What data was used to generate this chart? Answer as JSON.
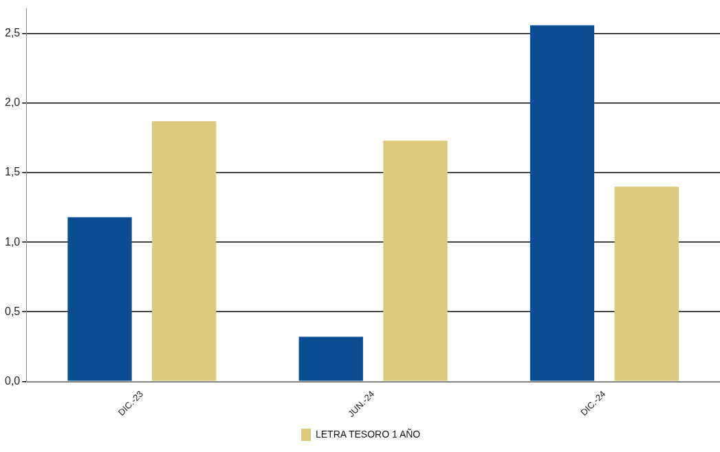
{
  "chart_data": {
    "type": "bar",
    "categories": [
      "DIC.-23",
      "JUN.-24",
      "DIC.-24"
    ],
    "series": [
      {
        "color": "#0b4d93",
        "values": [
          1.18,
          0.32,
          2.56
        ]
      },
      {
        "name": "LETRA TESORO 1 AÑO",
        "color": "#dcc97c",
        "values": [
          1.87,
          1.73,
          1.4
        ]
      }
    ],
    "ylim": [
      0,
      2.68
    ],
    "yticks": [
      {
        "value": 0,
        "label": "0,0"
      },
      {
        "value": 0.5,
        "label": "0,5"
      },
      {
        "value": 1,
        "label": "1,0"
      },
      {
        "value": 1.5,
        "label": "1,5"
      },
      {
        "value": 2,
        "label": "2,0"
      },
      {
        "value": 2.5,
        "label": "2,5"
      }
    ],
    "grid": "y",
    "legend": "bottom"
  }
}
